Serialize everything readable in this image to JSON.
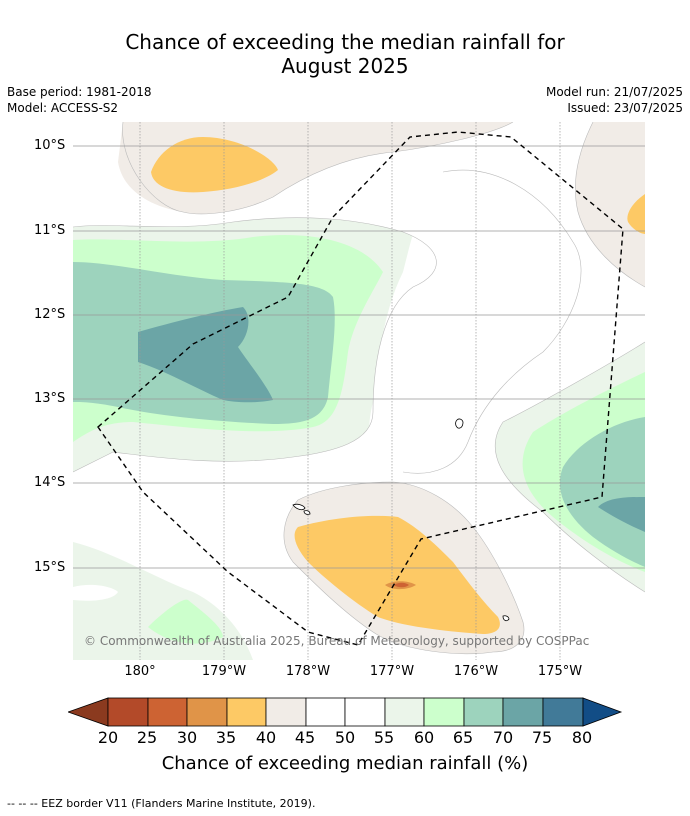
{
  "header": {
    "title_line1": "Chance of exceeding the median rainfall for",
    "title_line2": "August 2025",
    "base_period": "Base period: 1981-2018",
    "model": "Model: ACCESS-S2",
    "model_run": "Model run: 21/07/2025",
    "issued": "Issued: 23/07/2025"
  },
  "map": {
    "lat_labels": [
      "10°S",
      "11°S",
      "12°S",
      "13°S",
      "14°S",
      "15°S"
    ],
    "lon_labels": [
      "180°",
      "179°W",
      "178°W",
      "177°W",
      "176°W",
      "175°W"
    ],
    "copyright": "© Commonwealth of Australia 2025, Bureau of Meteorology, supported by COSPPac",
    "colors": {
      "c20_25": "#b34a29",
      "c25_30": "#cd6333",
      "c30_35": "#e09448",
      "c35_40": "#fdc965",
      "c40_45": "#f1ece7",
      "c45_55": "#ffffff",
      "c55_60": "#ebf5ea",
      "c60_65": "#ccffcc",
      "c65_70": "#9dd3bd",
      "c70_75": "#6ba5a6",
      "c75_80": "#417a98",
      "below": "#8b3a1f",
      "above": "#124d86"
    }
  },
  "colorbar": {
    "ticks": [
      "20",
      "25",
      "30",
      "35",
      "40",
      "45",
      "50",
      "55",
      "60",
      "65",
      "70",
      "75",
      "80"
    ],
    "label": "Chance of exceeding median rainfall (%)"
  },
  "footer": {
    "eez_note": "--  --  -- EEZ border V11 (Flanders Marine Institute, 2019)."
  }
}
